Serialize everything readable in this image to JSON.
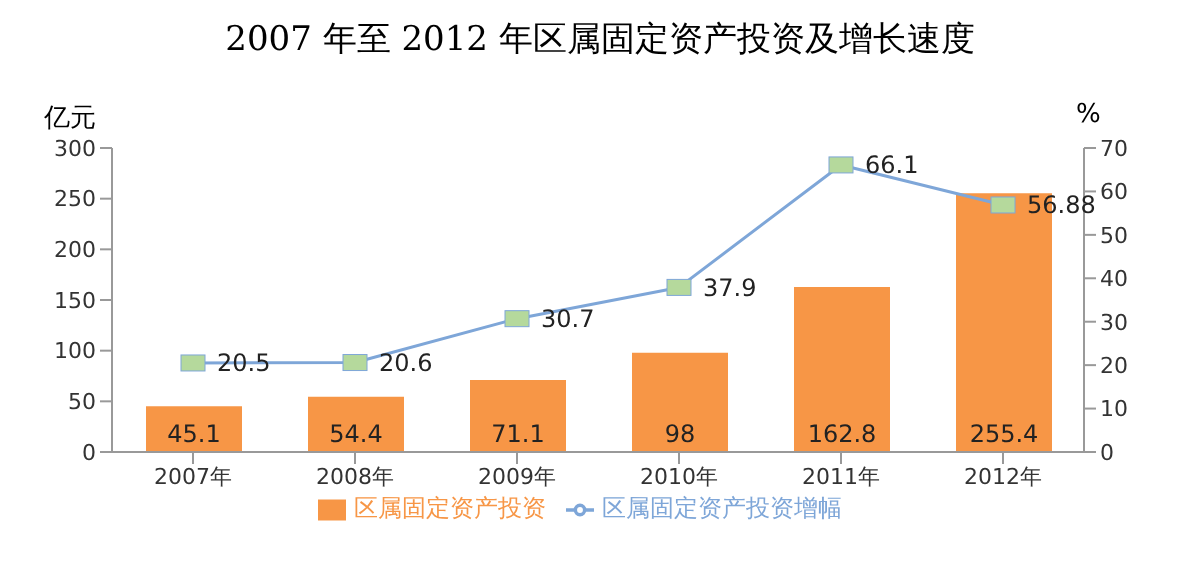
{
  "chart_data": {
    "type": "bar",
    "title": "2007 年至 2012 年区属固定资产投资及增长速度",
    "ylabel": "亿元",
    "y2label": "%",
    "categories": [
      "2007年",
      "2008年",
      "2009年",
      "2010年",
      "2011年",
      "2012年"
    ],
    "series": [
      {
        "name": "区属固定资产投资",
        "color": "#f79646",
        "values": [
          45.1,
          54.4,
          71.1,
          98,
          162.8,
          255.4
        ]
      },
      {
        "name": "区属固定资产投资增幅",
        "type": "line",
        "axis": "y2",
        "color": "#7ea6d8",
        "values": [
          20.5,
          20.6,
          30.7,
          37.9,
          66.1,
          56.88
        ]
      }
    ],
    "ylim": [
      0,
      300
    ],
    "yticks": [
      0,
      50,
      100,
      150,
      200,
      250,
      300
    ],
    "y2lim": [
      0,
      70
    ],
    "y2ticks": [
      0,
      10,
      20,
      30,
      40,
      50,
      60,
      70
    ],
    "data_labels": true,
    "grid": false,
    "legend": "bottom",
    "marker": "square"
  }
}
